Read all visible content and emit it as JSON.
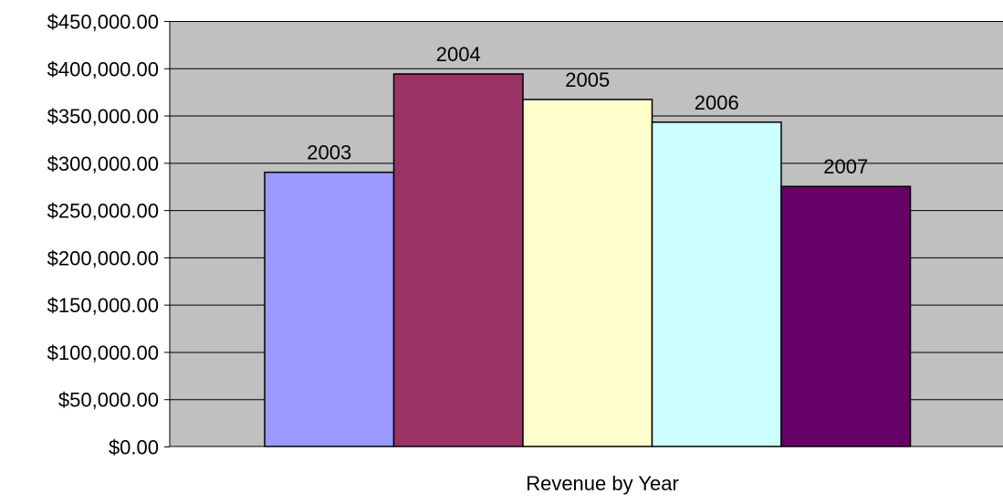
{
  "chart_data": {
    "type": "bar",
    "title": "",
    "xlabel": "Revenue by Year",
    "ylabel": "",
    "ylim": [
      0,
      450000
    ],
    "y_ticks": [
      0,
      50000,
      100000,
      150000,
      200000,
      250000,
      300000,
      350000,
      400000,
      450000
    ],
    "y_tick_labels": [
      "$0.00",
      "$50,000.00",
      "$100,000.00",
      "$150,000.00",
      "$200,000.00",
      "$250,000.00",
      "$300,000.00",
      "$350,000.00",
      "$400,000.00",
      "$450,000.00"
    ],
    "grid": true,
    "legend": "none",
    "plot_background": "#c0c0c0",
    "series": [
      {
        "label": "2003",
        "value": 290000,
        "color": "#9999ff"
      },
      {
        "label": "2004",
        "value": 394000,
        "color": "#993366"
      },
      {
        "label": "2005",
        "value": 367000,
        "color": "#ffffcc"
      },
      {
        "label": "2006",
        "value": 343000,
        "color": "#ccffff"
      },
      {
        "label": "2007",
        "value": 275000,
        "color": "#660066"
      }
    ]
  }
}
